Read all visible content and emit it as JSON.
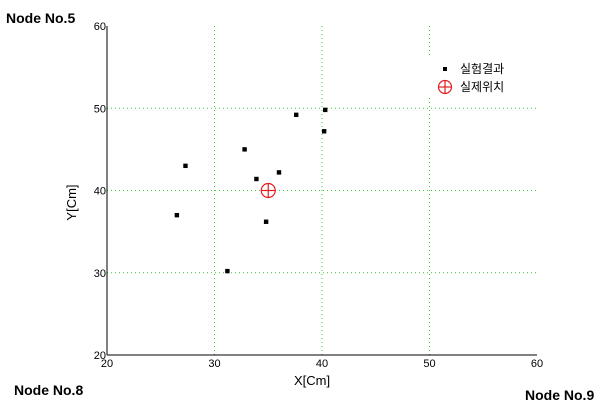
{
  "nodes": {
    "top_left": "Node No.5",
    "bottom_left": "Node No.8",
    "bottom_right": "Node No.9"
  },
  "chart_data": {
    "type": "scatter",
    "xlabel": "X[Cm]",
    "ylabel": "Y[Cm]",
    "xlim": [
      20,
      60
    ],
    "ylim": [
      20,
      60
    ],
    "x_ticks": [
      20,
      30,
      40,
      50,
      60
    ],
    "y_ticks": [
      20,
      30,
      40,
      50,
      60
    ],
    "grid": true,
    "grid_color": "#3cc83c",
    "legend_position": "top-right",
    "series": [
      {
        "name": "실험결과",
        "marker": "square",
        "color": "#000000",
        "points": [
          {
            "x": 26.5,
            "y": 37.0
          },
          {
            "x": 27.3,
            "y": 43.0
          },
          {
            "x": 31.2,
            "y": 30.2
          },
          {
            "x": 32.8,
            "y": 45.0
          },
          {
            "x": 33.9,
            "y": 41.4
          },
          {
            "x": 34.8,
            "y": 36.2
          },
          {
            "x": 36.0,
            "y": 42.2
          },
          {
            "x": 37.6,
            "y": 49.2
          },
          {
            "x": 40.2,
            "y": 47.2
          },
          {
            "x": 40.3,
            "y": 49.8
          }
        ]
      },
      {
        "name": "실제위치",
        "marker": "circle-cross",
        "color": "#e02020",
        "points": [
          {
            "x": 35.0,
            "y": 40.0
          }
        ]
      }
    ]
  }
}
